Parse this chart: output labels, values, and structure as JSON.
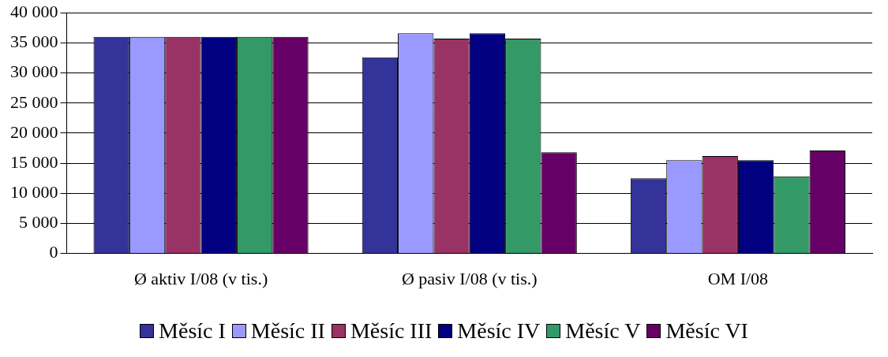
{
  "chart_data": {
    "type": "bar",
    "categories": [
      "Ø aktiv I/08 (v tis.)",
      "Ø pasiv I/08 (v tis.)",
      "OM I/08"
    ],
    "series": [
      {
        "name": "Měsíc I",
        "color": "#333399",
        "values": [
          36000,
          32600,
          12500
        ]
      },
      {
        "name": "Měsíc II",
        "color": "#9999ff",
        "values": [
          36000,
          36600,
          15500
        ]
      },
      {
        "name": "Měsíc III",
        "color": "#993366",
        "values": [
          36000,
          35700,
          16200
        ]
      },
      {
        "name": "Měsíc IV",
        "color": "#000080",
        "values": [
          36000,
          36600,
          15500
        ]
      },
      {
        "name": "Měsíc V",
        "color": "#339966",
        "values": [
          36000,
          35700,
          12800
        ]
      },
      {
        "name": "Měsíc VI",
        "color": "#660066",
        "values": [
          36000,
          16800,
          17100
        ]
      }
    ],
    "ylim": [
      0,
      40000
    ],
    "yticks": [
      0,
      {
        "value": 5000,
        "label": "5 000"
      },
      {
        "value": 10000,
        "label": "10 000"
      },
      {
        "value": 15000,
        "label": "15 000"
      },
      {
        "value": 20000,
        "label": "20 000"
      },
      {
        "value": 25000,
        "label": "25 000"
      },
      {
        "value": 30000,
        "label": "30 000"
      },
      {
        "value": 35000,
        "label": "35 000"
      },
      {
        "value": 40000,
        "label": "40 000"
      }
    ],
    "grid": "y",
    "legend": "bottom"
  }
}
